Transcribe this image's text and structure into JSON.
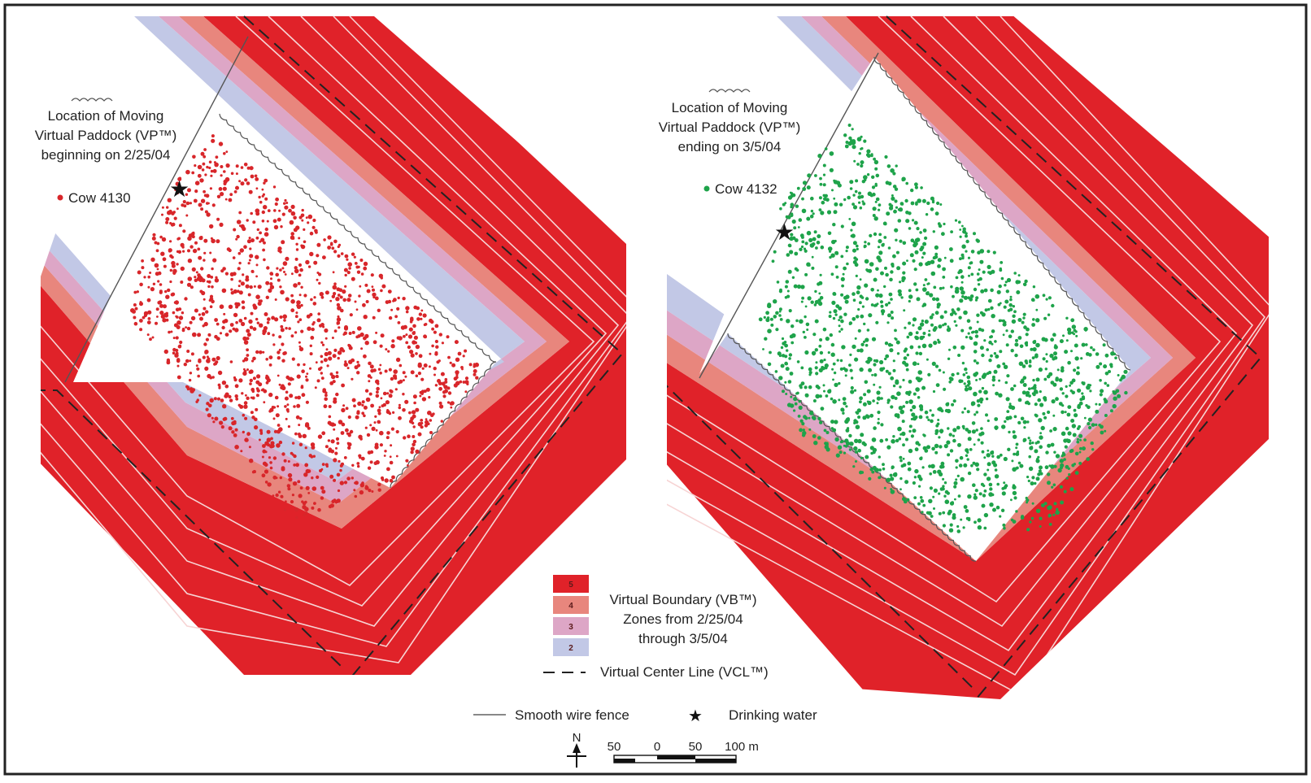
{
  "left_panel": {
    "paddock_label": [
      "Location of Moving",
      "Virtual Paddock (VP™)",
      "beginning on 2/25/04"
    ],
    "cow_label": "Cow 4130",
    "cow_color": "#d8262a"
  },
  "right_panel": {
    "paddock_label": [
      "Location of Moving",
      "Virtual Paddock (VP™)",
      "ending on 3/5/04"
    ],
    "cow_label": "Cow 4132",
    "cow_color": "#1ea34a"
  },
  "zones": [
    {
      "number": "5",
      "color": "#e02229"
    },
    {
      "number": "4",
      "color": "#e8867d"
    },
    {
      "number": "3",
      "color": "#dda6c6"
    },
    {
      "number": "2",
      "color": "#c2c8e6"
    }
  ],
  "legend": {
    "zones_title": [
      "Virtual Boundary (VB™)",
      "Zones from 2/25/04",
      "through 3/5/04"
    ],
    "center_line": "Virtual Center Line (VCL™)",
    "fence": "Smooth wire fence",
    "water": "Drinking water"
  },
  "scale_bar": {
    "north": "N",
    "ticks": [
      "50",
      "0",
      "50",
      "100 m"
    ]
  }
}
